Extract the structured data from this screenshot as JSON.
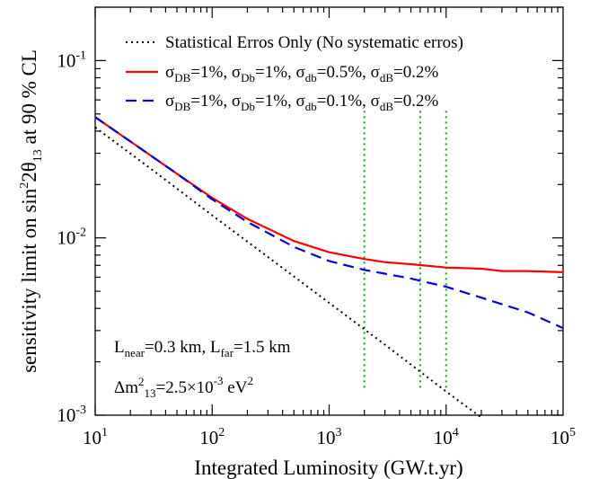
{
  "chart_data": {
    "type": "line",
    "xlabel": "Integrated Luminosity (GW.t.yr)",
    "ylabel": {
      "prefix": "sensitivity limit on sin",
      "sup": "2",
      "mid": "2θ",
      "sub": "13",
      "suffix": " at 90 % CL"
    },
    "x_scale": "log",
    "y_scale": "log",
    "xlim": [
      10,
      100000
    ],
    "ylim": [
      0.001,
      0.2
    ],
    "grid": false,
    "legend_position": "top-right",
    "x_ticks": [
      {
        "value": 10,
        "base": "10",
        "exp": "1"
      },
      {
        "value": 100,
        "base": "10",
        "exp": "2"
      },
      {
        "value": 1000,
        "base": "10",
        "exp": "3"
      },
      {
        "value": 10000,
        "base": "10",
        "exp": "4"
      },
      {
        "value": 100000,
        "base": "10",
        "exp": "5"
      }
    ],
    "y_ticks": [
      {
        "value": 0.001,
        "base": "10",
        "exp": "-3"
      },
      {
        "value": 0.01,
        "base": "10",
        "exp": "-2"
      },
      {
        "value": 0.1,
        "base": "10",
        "exp": "-1"
      }
    ],
    "series": [
      {
        "name": "Statistical Erros Only (No systematic erros)",
        "color": "#000000",
        "style": "dotted",
        "x": [
          10,
          30,
          100,
          300,
          1000,
          3000,
          10000,
          20000
        ],
        "y": [
          0.042,
          0.0245,
          0.0134,
          0.0078,
          0.0043,
          0.0025,
          0.00136,
          0.00097
        ]
      },
      {
        "name_parts": [
          [
            "σ",
            "DB",
            "=1%, "
          ],
          [
            "σ",
            "Db",
            "=1%, "
          ],
          [
            "σ",
            "db",
            "=0.5%, "
          ],
          [
            "σ",
            "dB",
            "=0.2%"
          ]
        ],
        "color": "#ff0000",
        "style": "solid",
        "x": [
          10,
          20,
          50,
          100,
          200,
          500,
          1000,
          2000,
          3000,
          5000,
          10000,
          20000,
          30000,
          50000,
          100000
        ],
        "y": [
          0.048,
          0.035,
          0.023,
          0.0168,
          0.0128,
          0.0096,
          0.0083,
          0.0076,
          0.0073,
          0.0071,
          0.0068,
          0.0067,
          0.0065,
          0.0065,
          0.0064
        ]
      },
      {
        "name_parts": [
          [
            "σ",
            "DB",
            "=1%, "
          ],
          [
            "σ",
            "Db",
            "=1%, "
          ],
          [
            "σ",
            "db",
            "=0.1%, "
          ],
          [
            "σ",
            "dB",
            "=0.2%"
          ]
        ],
        "color": "#0000dd",
        "style": "dashed",
        "x": [
          10,
          20,
          50,
          100,
          200,
          500,
          1000,
          2000,
          5000,
          10000,
          20000,
          50000,
          100000
        ],
        "y": [
          0.048,
          0.035,
          0.023,
          0.0165,
          0.0123,
          0.0089,
          0.0074,
          0.0066,
          0.0059,
          0.0053,
          0.0046,
          0.0038,
          0.0031
        ]
      }
    ],
    "vertical_markers": {
      "color": "#00aa00",
      "style": "dotted",
      "x": [
        2000,
        6000,
        10000
      ],
      "y_from": 0.0014,
      "y_to": 0.052
    },
    "annotations": {
      "line1": [
        {
          "base": "L",
          "sub": "near",
          "after": "=0.3 km, "
        },
        {
          "base": "L",
          "sub": "far",
          "after": "=1.5 km"
        }
      ],
      "line2": {
        "prefix": "Δm",
        "sup": "2",
        "sub": "13",
        "mid": "=2.5×10",
        "exp": "-3",
        "tail": " eV",
        "tail_sup": "2"
      }
    }
  }
}
